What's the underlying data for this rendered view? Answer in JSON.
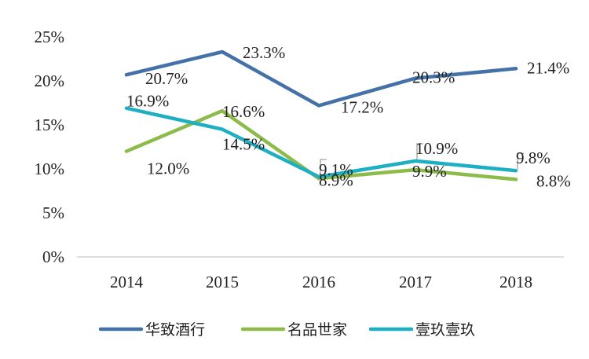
{
  "chart_data": {
    "type": "line",
    "categories": [
      "2014",
      "2015",
      "2016",
      "2017",
      "2018"
    ],
    "ylim": [
      0,
      25
    ],
    "yticks": [
      "0%",
      "5%",
      "10%",
      "15%",
      "20%",
      "25%"
    ],
    "ytick_values": [
      0,
      5,
      10,
      15,
      20,
      25
    ],
    "grid": false,
    "legend_position": "bottom",
    "series": [
      {
        "name": "华致酒行",
        "color": "#4472A8",
        "values": [
          20.7,
          23.3,
          17.2,
          20.3,
          21.4
        ],
        "labels": [
          "20.7%",
          "23.3%",
          "17.2%",
          "20.3%",
          "21.4%"
        ]
      },
      {
        "name": "名品世家",
        "color": "#8DBB4A",
        "values": [
          12.0,
          16.6,
          8.9,
          9.9,
          8.8
        ],
        "labels": [
          "12.0%",
          "16.6%",
          "8.9%",
          "9.9%",
          "8.8%"
        ]
      },
      {
        "name": "壹玖壹玖",
        "color": "#1FAFC3",
        "values": [
          16.9,
          14.5,
          9.1,
          10.9,
          9.8
        ],
        "labels": [
          "16.9%",
          "14.5%",
          "9.1%",
          "10.9%",
          "9.8%"
        ]
      }
    ]
  }
}
